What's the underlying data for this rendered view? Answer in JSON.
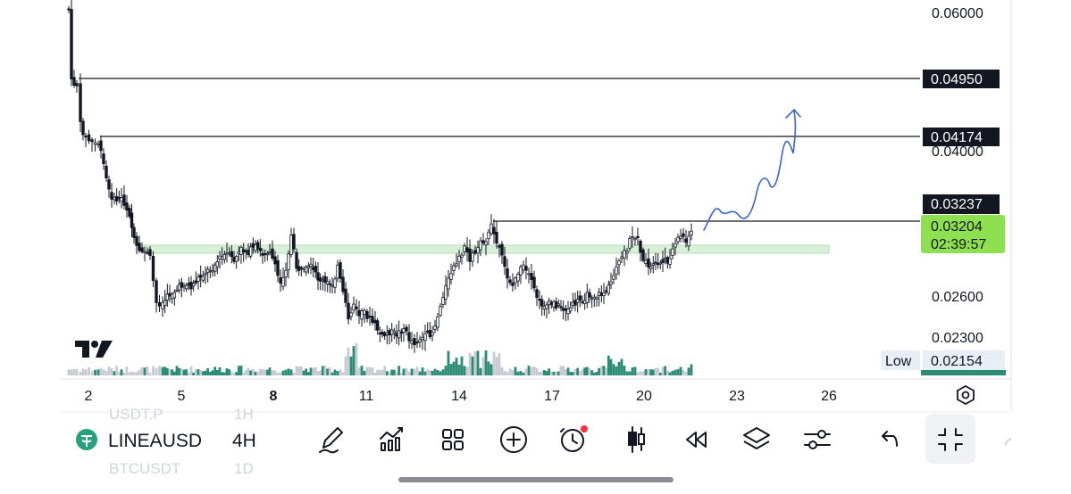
{
  "chart": {
    "symbol": "LINEAUSD",
    "interval": "4H",
    "ghost_symbol_top": "USDT.P",
    "ghost_symbol_top_interval": "1H",
    "ghost_symbol_bottom": "BTCUSDT",
    "ghost_symbol_bottom_interval": "1D",
    "price_axis": [
      "0.06000",
      "0.04000",
      "0.02600",
      "0.02300"
    ],
    "date_axis": [
      "2",
      "5",
      "8",
      "11",
      "14",
      "17",
      "20",
      "23",
      "26"
    ],
    "horizontal_levels": [
      {
        "price": "0.04950",
        "label": "0.04950"
      },
      {
        "price": "0.04174",
        "label": "0.04174"
      },
      {
        "price": "0.03237",
        "label": "0.03237"
      }
    ],
    "last_price": "0.03204",
    "countdown": "02:39:57",
    "low_label": "Low",
    "low_value": "0.02154",
    "support_zone": "0.02950–0.03010",
    "colors": {
      "candle": "#131722",
      "volume_up": "#2a8c74",
      "volume_down": "#c7cbd1",
      "zone": "#d8efd8",
      "drawing": "#3e64c8",
      "last_price_bg": "#8fe050",
      "low_bg": "#e8eef6"
    }
  },
  "toolbar": {
    "items": [
      "draw-icon",
      "indicators-icon",
      "layout-grid-icon",
      "add-icon",
      "alert-icon",
      "candles-icon",
      "replay-icon",
      "layers-icon",
      "settings-sliders-icon",
      "undo-icon",
      "exit-fullscreen-icon"
    ]
  }
}
